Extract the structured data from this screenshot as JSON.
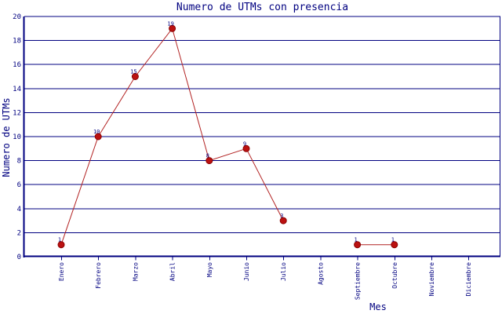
{
  "chart_data": {
    "type": "line",
    "title": "Numero de UTMs con presencia",
    "xlabel": "Mes",
    "ylabel": "Numero de UTMs",
    "categories": [
      "Enero",
      "Febrero",
      "Marzo",
      "Abril",
      "Mayo",
      "Junio",
      "Julio",
      "Agosto",
      "Septiembre",
      "Octubre",
      "Noviembre",
      "Diciembre"
    ],
    "series": [
      {
        "name": "UTMs con presencia",
        "values": [
          1,
          10,
          15,
          19,
          8,
          9,
          3,
          null,
          1,
          1,
          null,
          null
        ]
      }
    ],
    "yticks": [
      0,
      2,
      4,
      6,
      8,
      10,
      12,
      14,
      16,
      18,
      20
    ],
    "ylim": [
      0,
      20
    ],
    "ytick_step": 2,
    "grid": "horizontal",
    "point_labels_visible": true,
    "legend": "none",
    "colors": {
      "text": "#000080",
      "grid": "#000080",
      "axis": "#000080",
      "line": "#b22222",
      "marker": "#bb1111",
      "marker_edge": "#8b0000",
      "background": "#ffffff"
    }
  }
}
